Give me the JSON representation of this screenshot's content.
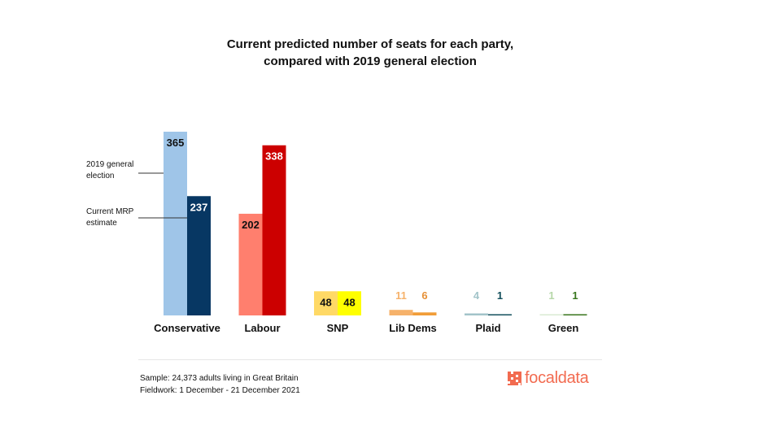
{
  "chart_data": {
    "type": "bar",
    "title_lines": [
      "Current predicted number of seats for each party,",
      "compared with 2019 general election"
    ],
    "categories": [
      "Conservative",
      "Labour",
      "SNP",
      "Lib Dems",
      "Plaid",
      "Green"
    ],
    "series": [
      {
        "name": "2019 general election",
        "values": [
          365,
          202,
          48,
          11,
          4,
          1
        ],
        "colors": [
          "#9fc5e8",
          "#ff7f6e",
          "#ffd966",
          "#f6b26b",
          "#a2c4c9",
          "#d9ead3"
        ],
        "label_colors": [
          "#111111",
          "#111111",
          "#111111",
          "#f6b26b",
          "#a2c4c9",
          "#b6d7a8"
        ]
      },
      {
        "name": "Current MRP estimate",
        "values": [
          237,
          338,
          48,
          6,
          1,
          1
        ],
        "colors": [
          "#073763",
          "#cc0000",
          "#ffff00",
          "#f19d38",
          "#134f5c",
          "#38761d"
        ],
        "label_colors": [
          "#ffffff",
          "#ffffff",
          "#111111",
          "#e69138",
          "#134f5c",
          "#38761d"
        ]
      }
    ],
    "ylim": [
      0,
      365
    ],
    "xlabel": "",
    "ylabel": "",
    "grid": false,
    "annotations": [
      {
        "lines": [
          "2019 general",
          "election"
        ],
        "series": 0
      },
      {
        "lines": [
          "Current MRP",
          "estimate"
        ],
        "series": 1
      }
    ]
  },
  "footer": {
    "sample": "Sample: 24,373 adults living in Great Britain",
    "fieldwork": "Fieldwork: 1 December - 21 December 2021"
  },
  "logo": {
    "text": "focaldata",
    "color": "#f26b50"
  }
}
